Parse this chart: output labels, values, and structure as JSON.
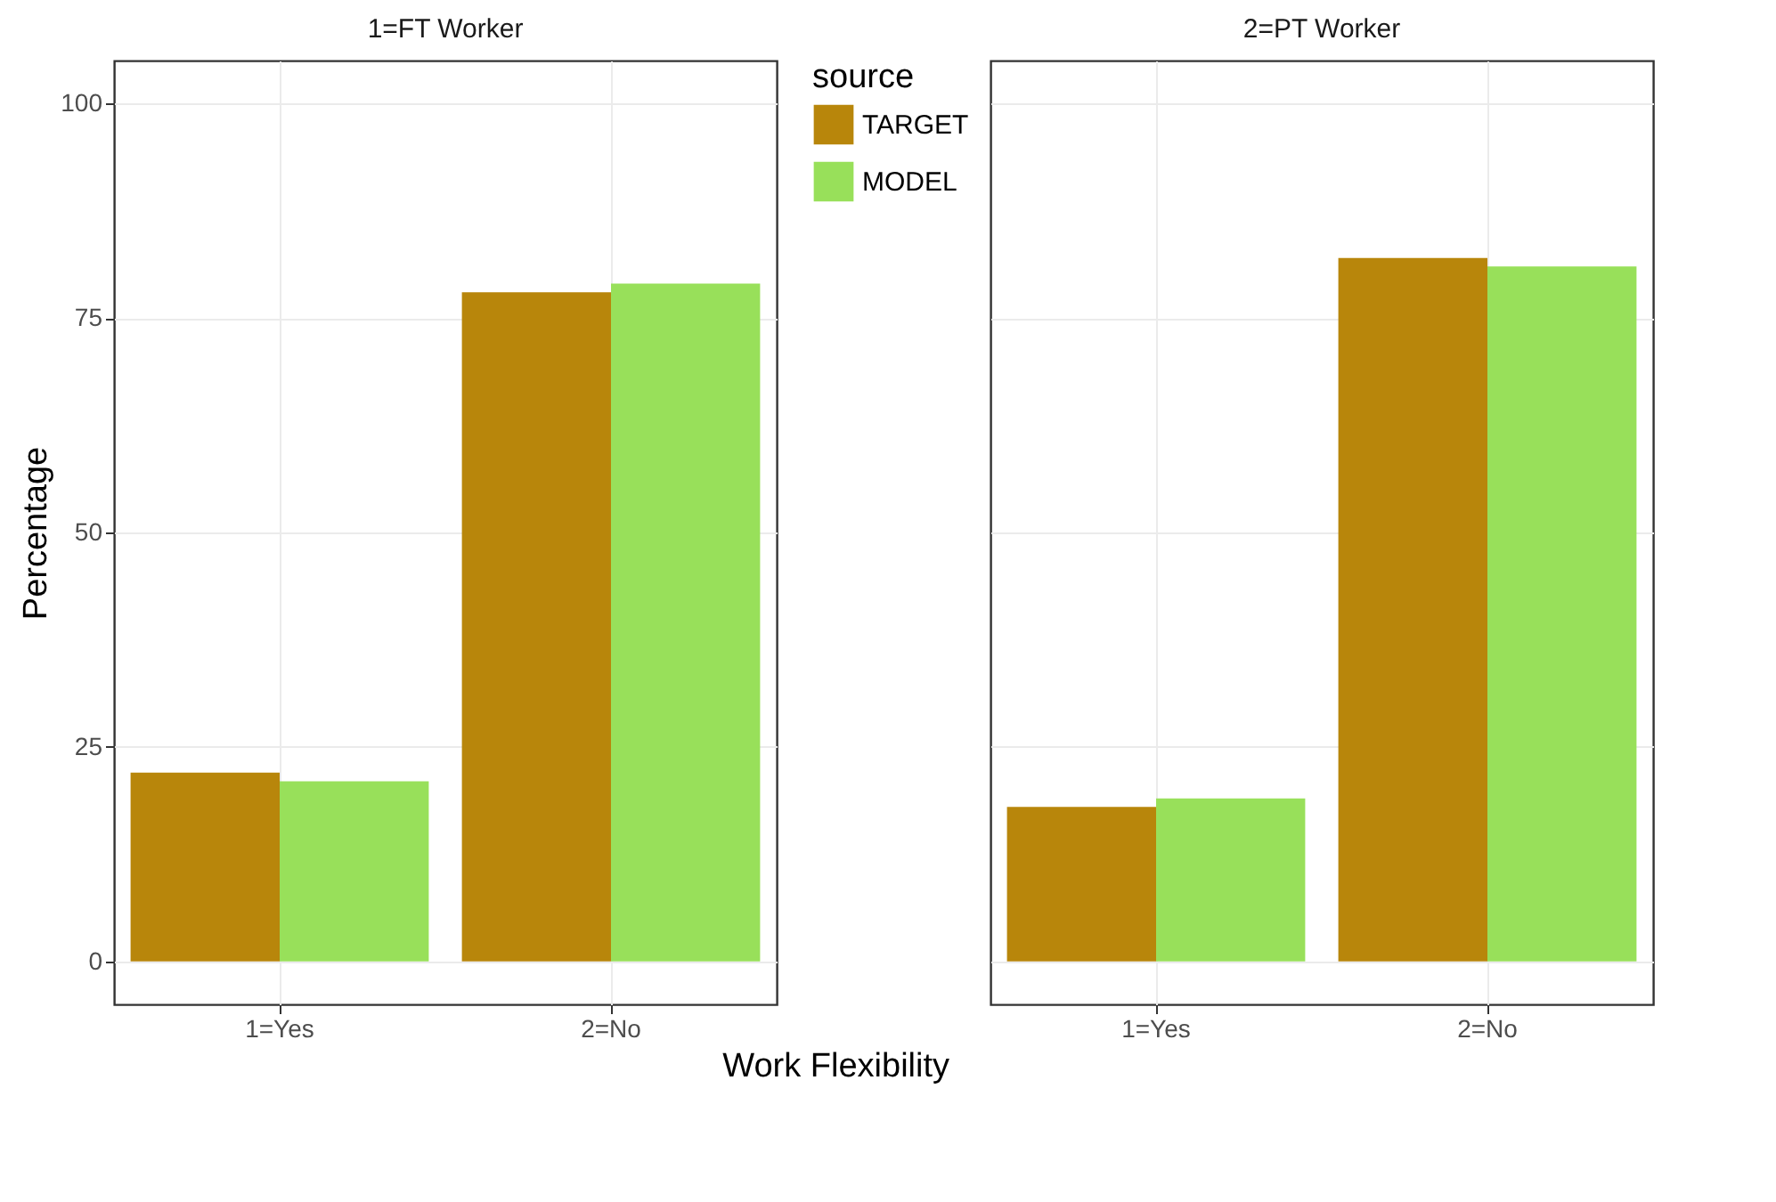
{
  "chart_data": [
    {
      "type": "bar",
      "title": "1=FT Worker",
      "legend_title": "source",
      "legend": "right",
      "xlabel": "Work Flexibility",
      "ylabel": "Percentage",
      "categories": [
        "1=Yes",
        "2=No"
      ],
      "series": [
        {
          "name": "TARGET",
          "color": "#b8860b",
          "values": [
            22,
            78
          ]
        },
        {
          "name": "MODEL",
          "color": "#98e05a",
          "values": [
            21,
            79
          ]
        }
      ],
      "ylim": [
        -5,
        105
      ],
      "yticks": [
        0,
        25,
        50,
        75,
        100
      ],
      "grid": true
    },
    {
      "type": "bar",
      "title": "2=PT Worker",
      "categories": [
        "1=Yes",
        "2=No"
      ],
      "series": [
        {
          "name": "TARGET",
          "color": "#b8860b",
          "values": [
            18,
            82
          ]
        },
        {
          "name": "MODEL",
          "color": "#98e05a",
          "values": [
            19,
            81
          ]
        }
      ],
      "ylim": [
        -5,
        105
      ],
      "yticks": [
        0,
        25,
        50,
        75,
        100
      ],
      "grid": true,
      "tick_labels": "x"
    }
  ]
}
